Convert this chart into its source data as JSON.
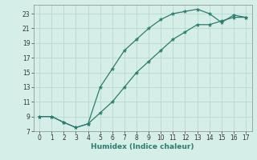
{
  "xlabel": "Humidex (Indice chaleur)",
  "bg_color": "#d6eee8",
  "grid_color": "#b8d8d0",
  "line_color": "#2a7d6e",
  "xlim": [
    -0.5,
    17.5
  ],
  "ylim": [
    7,
    24.2
  ],
  "xticks": [
    0,
    1,
    2,
    3,
    4,
    5,
    6,
    7,
    8,
    9,
    10,
    11,
    12,
    13,
    14,
    15,
    16,
    17
  ],
  "yticks": [
    7,
    9,
    11,
    13,
    15,
    17,
    19,
    21,
    23
  ],
  "line1_x": [
    0,
    1,
    2,
    3,
    4,
    5,
    6,
    7,
    8,
    9,
    10,
    11,
    12,
    13,
    14,
    15,
    16,
    17
  ],
  "line1_y": [
    9.0,
    9.0,
    8.2,
    7.5,
    8.0,
    13.0,
    15.5,
    18.0,
    19.5,
    21.0,
    22.2,
    23.0,
    23.3,
    23.6,
    23.0,
    21.8,
    22.8,
    22.5
  ],
  "line2_x": [
    0,
    1,
    2,
    3,
    4,
    5,
    6,
    7,
    8,
    9,
    10,
    11,
    12,
    13,
    14,
    15,
    16,
    17
  ],
  "line2_y": [
    9.0,
    9.0,
    8.2,
    7.5,
    8.0,
    9.5,
    11.0,
    13.0,
    15.0,
    16.5,
    18.0,
    19.5,
    20.5,
    21.5,
    21.5,
    22.0,
    22.5,
    22.5
  ]
}
